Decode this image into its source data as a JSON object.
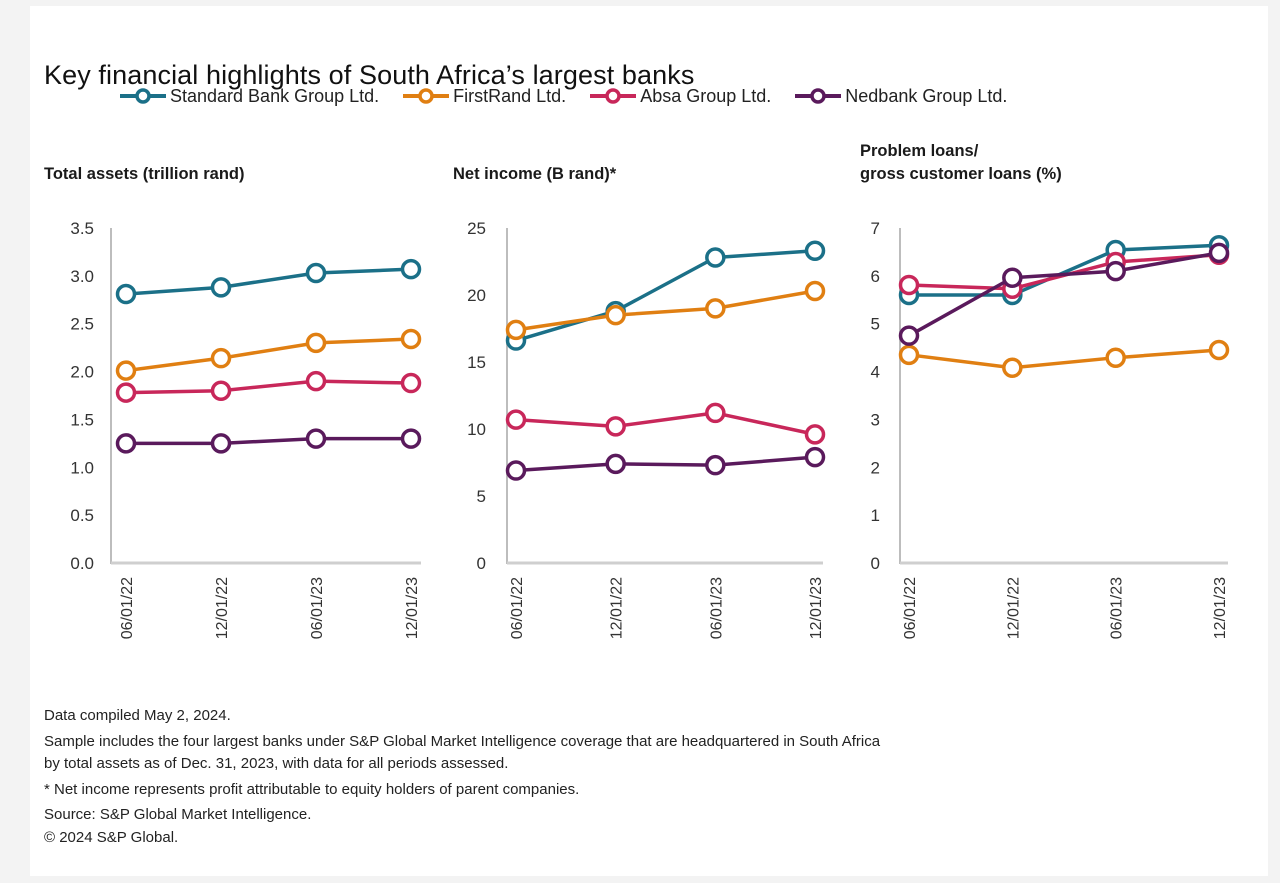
{
  "title": "Key financial highlights of South Africa’s largest banks",
  "legend": [
    {
      "name": "Standard Bank Group Ltd.",
      "color": "#1b7088"
    },
    {
      "name": "FirstRand Ltd.",
      "color": "#e07f12"
    },
    {
      "name": "Absa Group Ltd.",
      "color": "#c8275a"
    },
    {
      "name": "Nedbank Group Ltd.",
      "color": "#5a1a5c"
    }
  ],
  "panel_titles": {
    "assets": [
      "Total assets (trillion rand)"
    ],
    "income": [
      "Net income (B rand)*"
    ],
    "loans": [
      "Problem loans/",
      "gross customer loans (%)"
    ]
  },
  "chart_data": [
    {
      "type": "line",
      "title": "Total assets (trillion rand)",
      "x": [
        "06/01/22",
        "12/01/22",
        "06/01/23",
        "12/01/23"
      ],
      "ylim": [
        0,
        3.5
      ],
      "yticks": [
        "0.0",
        "0.5",
        "1.0",
        "1.5",
        "2.0",
        "2.5",
        "3.0",
        "3.5"
      ],
      "ytick_values": [
        0,
        0.5,
        1.0,
        1.5,
        2.0,
        2.5,
        3.0,
        3.5
      ],
      "grid": false,
      "series": [
        {
          "name": "Standard Bank Group Ltd.",
          "values": [
            2.81,
            2.88,
            3.03,
            3.07
          ]
        },
        {
          "name": "FirstRand Ltd.",
          "values": [
            2.01,
            2.14,
            2.3,
            2.34
          ]
        },
        {
          "name": "Absa Group Ltd.",
          "values": [
            1.78,
            1.8,
            1.9,
            1.88
          ]
        },
        {
          "name": "Nedbank Group Ltd.",
          "values": [
            1.25,
            1.25,
            1.3,
            1.3
          ]
        }
      ]
    },
    {
      "type": "line",
      "title": "Net income (B rand)*",
      "x": [
        "06/01/22",
        "12/01/22",
        "06/01/23",
        "12/01/23"
      ],
      "ylim": [
        0,
        25
      ],
      "yticks": [
        "0",
        "5",
        "10",
        "15",
        "20",
        "25"
      ],
      "ytick_values": [
        0,
        5,
        10,
        15,
        20,
        25
      ],
      "grid": false,
      "series": [
        {
          "name": "Standard Bank Group Ltd.",
          "values": [
            16.6,
            18.8,
            22.8,
            23.3
          ]
        },
        {
          "name": "FirstRand Ltd.",
          "values": [
            17.4,
            18.5,
            19.0,
            20.3
          ]
        },
        {
          "name": "Absa Group Ltd.",
          "values": [
            10.7,
            10.2,
            11.2,
            9.6
          ]
        },
        {
          "name": "Nedbank Group Ltd.",
          "values": [
            6.9,
            7.4,
            7.3,
            7.9
          ]
        }
      ]
    },
    {
      "type": "line",
      "title": "Problem loans/ gross customer loans (%)",
      "x": [
        "06/01/22",
        "12/01/22",
        "06/01/23",
        "12/01/23"
      ],
      "ylim": [
        0,
        7
      ],
      "yticks": [
        "0",
        "1",
        "2",
        "3",
        "4",
        "5",
        "6",
        "7"
      ],
      "ytick_values": [
        0,
        1,
        2,
        3,
        4,
        5,
        6,
        7
      ],
      "grid": false,
      "series": [
        {
          "name": "Standard Bank Group Ltd.",
          "values": [
            5.6,
            5.6,
            6.54,
            6.64
          ]
        },
        {
          "name": "FirstRand Ltd.",
          "values": [
            4.35,
            4.08,
            4.29,
            4.45
          ]
        },
        {
          "name": "Absa Group Ltd.",
          "values": [
            5.81,
            5.73,
            6.29,
            6.44
          ]
        },
        {
          "name": "Nedbank Group Ltd.",
          "values": [
            4.75,
            5.96,
            6.1,
            6.48
          ]
        }
      ]
    }
  ],
  "footer": {
    "compiled": "Data compiled May 2, 2024.",
    "sample_line1": "Sample includes the four largest banks under S&P Global Market Intelligence coverage that are headquartered in South Africa",
    "sample_line2": "by total assets as of Dec. 31, 2023, with data for all periods assessed.",
    "note": "* Net income represents profit attributable to equity holders of parent companies.",
    "source": "Source: S&P Global Market Intelligence.",
    "copyright": "© 2024 S&P Global."
  }
}
